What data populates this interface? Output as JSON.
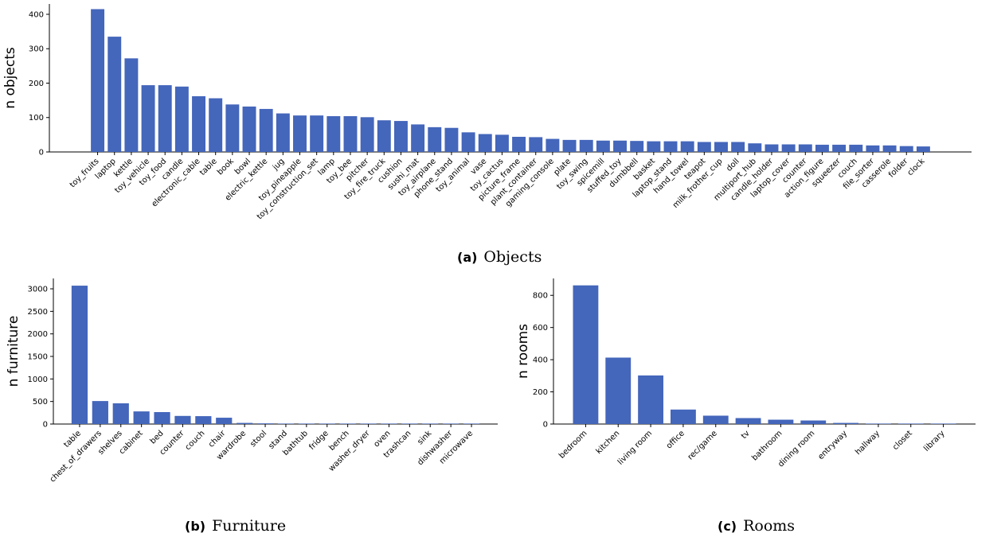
{
  "chart_data": [
    {
      "type": "bar",
      "panel_tag": "(a)",
      "caption": "Objects",
      "ylabel": "n objects",
      "xlabel": "",
      "color": "#4466bb",
      "ylim": [
        0,
        430
      ],
      "yticks": [
        0,
        100,
        200,
        300,
        400
      ],
      "categories": [
        "toy_fruits",
        "laptop",
        "kettle",
        "toy_vehicle",
        "toy_food",
        "candle",
        "electronic_cable",
        "table",
        "book",
        "bowl",
        "electric_kettle",
        "jug",
        "toy_pineapple",
        "toy_construction_set",
        "lamp",
        "toy_bee",
        "pitcher",
        "toy_fire_truck",
        "cushion",
        "sushi_mat",
        "toy_airplane",
        "phone_stand",
        "toy_animal",
        "vase",
        "toy_cactus",
        "picture_frame",
        "plant_container",
        "gaming_console",
        "plate",
        "toy_swing",
        "spicemill",
        "stuffed_toy",
        "dumbbell",
        "basket",
        "laptop_stand",
        "hand_towel",
        "teapot",
        "milk_frother_cup",
        "doll",
        "multiport_hub",
        "candle_holder",
        "laptop_cover",
        "counter",
        "action_figure",
        "squeezer",
        "couch",
        "file_sorter",
        "casserole",
        "folder",
        "clock"
      ],
      "values": [
        415,
        335,
        272,
        194,
        194,
        190,
        162,
        156,
        138,
        132,
        125,
        112,
        106,
        106,
        104,
        104,
        101,
        92,
        90,
        80,
        72,
        70,
        57,
        52,
        50,
        44,
        43,
        38,
        35,
        35,
        33,
        33,
        32,
        31,
        31,
        31,
        29,
        29,
        29,
        25,
        22,
        22,
        22,
        21,
        21,
        21,
        19,
        19,
        17,
        16
      ]
    },
    {
      "type": "bar",
      "panel_tag": "(b)",
      "caption": "Furniture",
      "ylabel": "n furniture",
      "xlabel": "",
      "color": "#4466bb",
      "ylim": [
        0,
        3230
      ],
      "yticks": [
        0,
        500,
        1000,
        1500,
        2000,
        2500,
        3000
      ],
      "categories": [
        "table",
        "chest_of_drawers",
        "shelves",
        "cabinet",
        "bed",
        "counter",
        "couch",
        "chair",
        "wardrobe",
        "stool",
        "stand",
        "bathtub",
        "fridge",
        "bench",
        "washer_dryer",
        "oven",
        "trashcan",
        "sink",
        "dishwasher",
        "microwave"
      ],
      "values": [
        3070,
        510,
        460,
        280,
        265,
        180,
        175,
        140,
        25,
        15,
        5,
        4,
        3,
        3,
        2,
        2,
        2,
        2,
        1,
        1
      ]
    },
    {
      "type": "bar",
      "panel_tag": "(c)",
      "caption": "Rooms",
      "ylabel": "n rooms",
      "xlabel": "",
      "color": "#4466bb",
      "ylim": [
        0,
        905
      ],
      "yticks": [
        0,
        200,
        400,
        600,
        800
      ],
      "categories": [
        "bedroom",
        "kitchen",
        "living room",
        "office",
        "rec/game",
        "tv",
        "bathroom",
        "dining room",
        "entryway",
        "hallway",
        "closet",
        "library"
      ],
      "values": [
        862,
        413,
        302,
        90,
        52,
        37,
        27,
        22,
        7,
        2,
        1,
        1
      ]
    }
  ]
}
